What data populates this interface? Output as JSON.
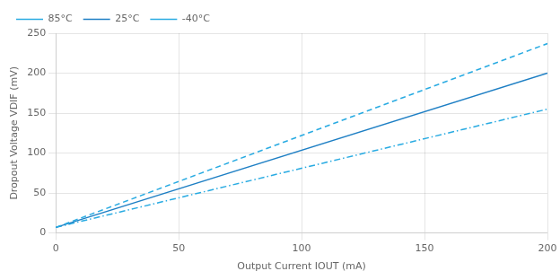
{
  "chart_data": {
    "type": "line",
    "x_label": "Output Current IOUT (mA)",
    "y_label": "Dropout Voltage VDIF (mV)",
    "x": [
      0,
      200
    ],
    "series": [
      {
        "name": "85°C",
        "color": "#29abe2",
        "line_style": "dashed",
        "values": [
          7,
          237
        ]
      },
      {
        "name": "25°C",
        "color": "#1e7fc4",
        "line_style": "solid",
        "values": [
          7,
          200
        ]
      },
      {
        "name": "-40°C",
        "color": "#29abe2",
        "line_style": "dashdot",
        "values": [
          7,
          155
        ]
      }
    ],
    "xlim": [
      0,
      200
    ],
    "ylim": [
      0,
      250
    ],
    "xticks": [
      0,
      50,
      100,
      150,
      200
    ],
    "yticks": [
      0,
      50,
      100,
      150,
      200,
      250
    ],
    "grid": true,
    "legend": "upper left"
  }
}
